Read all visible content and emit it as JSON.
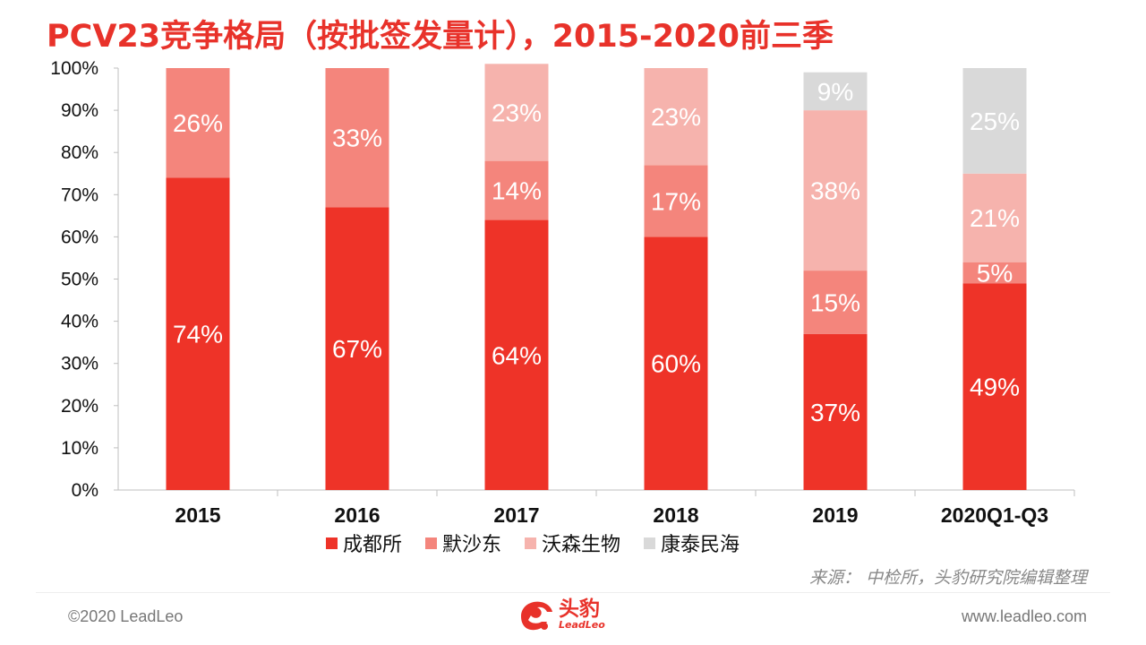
{
  "title": "PCV23竞争格局（按批签发量计），2015-2020前三季",
  "legend": [
    {
      "name": "成都所",
      "color": "#ee3328"
    },
    {
      "name": "默沙东",
      "color": "#f4857c"
    },
    {
      "name": "沃森生物",
      "color": "#f6b3ad"
    },
    {
      "name": "康泰民海",
      "color": "#d9d9d9"
    }
  ],
  "source": "来源： 中检所，头豹研究院编辑整理",
  "footer": {
    "copyright": "©2020 LeadLeo",
    "website": "www.leadleo.com",
    "logo_cn": "头豹",
    "logo_en": "LeadLeo"
  },
  "chart_data": {
    "type": "bar",
    "stacked": true,
    "categories": [
      "2015",
      "2016",
      "2017",
      "2018",
      "2019",
      "2020Q1-Q3"
    ],
    "series": [
      {
        "name": "成都所",
        "color": "#ee3328",
        "values": [
          74,
          67,
          64,
          60,
          37,
          49
        ]
      },
      {
        "name": "默沙东",
        "color": "#f4857c",
        "values": [
          26,
          33,
          14,
          17,
          15,
          5
        ]
      },
      {
        "name": "沃森生物",
        "color": "#f6b3ad",
        "values": [
          0,
          0,
          23,
          23,
          38,
          21
        ]
      },
      {
        "name": "康泰民海",
        "color": "#d9d9d9",
        "values": [
          0,
          0,
          0,
          0,
          9,
          25
        ]
      }
    ],
    "data_labels": [
      [
        "74%",
        "67%",
        "64%",
        "60%",
        "37%",
        "49%"
      ],
      [
        "26%",
        "33%",
        "14%",
        "17%",
        "15%",
        "5%"
      ],
      [
        "",
        "",
        "23%",
        "23%",
        "38%",
        "21%"
      ],
      [
        "",
        "",
        "",
        "",
        "9%",
        "25%"
      ]
    ],
    "yticks": [
      "0%",
      "10%",
      "20%",
      "30%",
      "40%",
      "50%",
      "60%",
      "70%",
      "80%",
      "90%",
      "100%"
    ],
    "ylim": [
      0,
      100
    ],
    "legend_position": "bottom",
    "grid": false
  }
}
